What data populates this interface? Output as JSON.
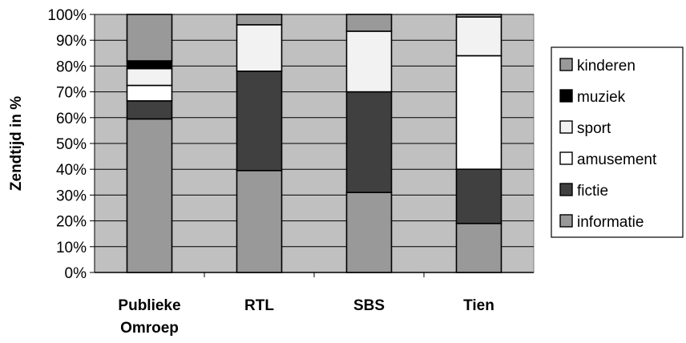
{
  "chart_data": {
    "type": "bar",
    "stacked": true,
    "ylabel": "Zendtijd in %",
    "ylim": [
      0,
      100
    ],
    "yticks": [
      0,
      10,
      20,
      30,
      40,
      50,
      60,
      70,
      80,
      90,
      100
    ],
    "ytick_suffix": "%",
    "grid": true,
    "legend_position": "right",
    "categories": [
      [
        "Publieke",
        "Omroep"
      ],
      [
        "RTL"
      ],
      [
        "SBS"
      ],
      [
        "Tien"
      ]
    ],
    "series": [
      {
        "name": "informatie",
        "color": "#999999",
        "values": [
          59.5,
          39.5,
          31,
          19
        ]
      },
      {
        "name": "fictie",
        "color": "#404040",
        "values": [
          7,
          38.5,
          39,
          21
        ]
      },
      {
        "name": "amusement",
        "color": "#ffffff",
        "values": [
          6,
          0,
          0,
          44
        ]
      },
      {
        "name": "sport",
        "color": "#f2f2f2",
        "values": [
          6.5,
          18,
          23.5,
          15
        ]
      },
      {
        "name": "muziek",
        "color": "#000000",
        "values": [
          3,
          0,
          0,
          0
        ]
      },
      {
        "name": "kinderen",
        "color": "#999999",
        "values": [
          18,
          4,
          6.5,
          1
        ]
      }
    ],
    "plot_background": "#c0c0c0"
  }
}
